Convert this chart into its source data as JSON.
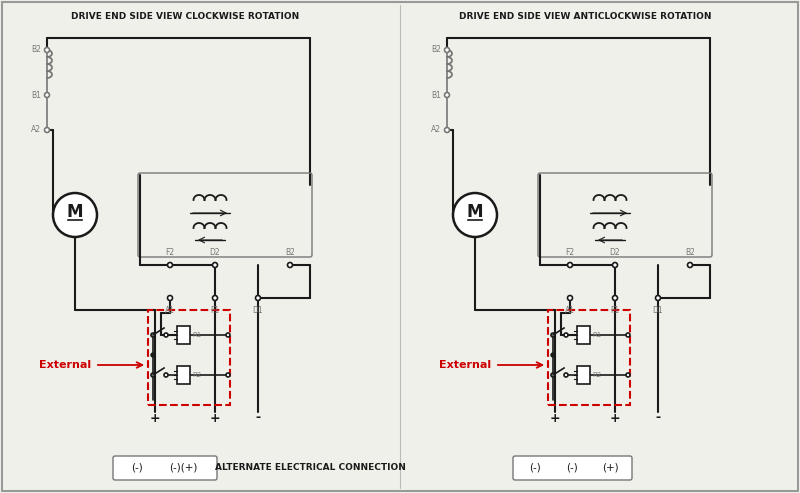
{
  "bg_color": "#f0f0eb",
  "line_color": "#1a1a1a",
  "gray_color": "#777777",
  "red_color": "#cc0000",
  "white": "#ffffff",
  "title_left": "DRIVE END SIDE VIEW CLOCKWISE ROTATION",
  "title_right": "DRIVE END SIDE VIEW ANTICLOCKWISE ROTATION",
  "bottom_label_center": "ALTERNATE ELECTRICAL CONNECTION",
  "external_label": "External",
  "fig_w": 8.0,
  "fig_h": 4.93,
  "dpi": 100
}
